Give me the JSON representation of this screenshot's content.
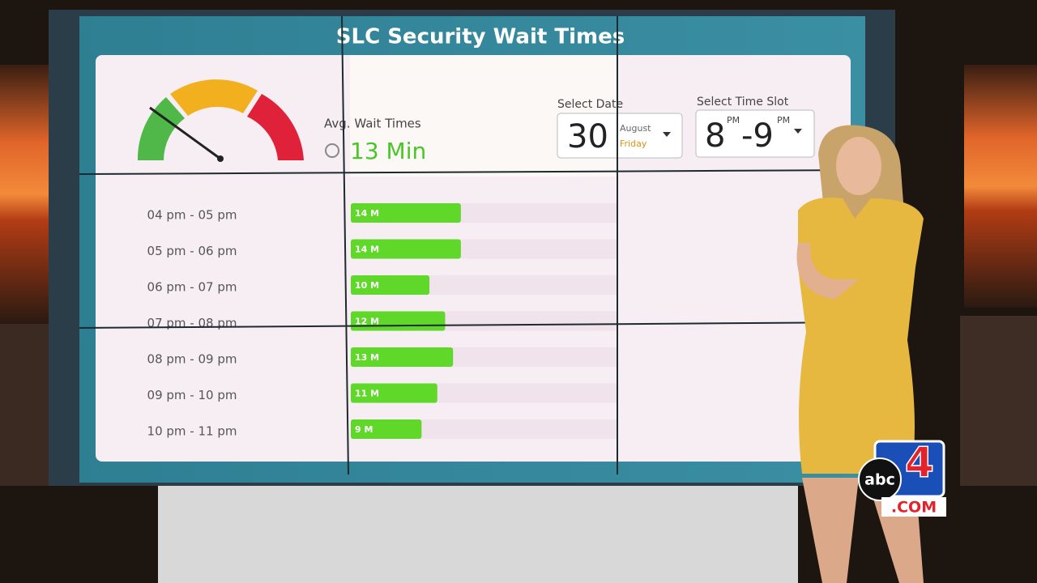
{
  "title": "SLC Security Wait Times",
  "gauge": {
    "label": "Avg. Wait Times",
    "value_label": "13 Min"
  },
  "date_picker": {
    "label": "Select Date",
    "day": "30",
    "month": "August",
    "weekday": "Friday"
  },
  "time_picker": {
    "label": "Select Time Slot",
    "start": "8",
    "start_suffix": "PM",
    "end": "-9",
    "end_suffix": "PM"
  },
  "chart_data": {
    "type": "bar",
    "orientation": "horizontal",
    "categories": [
      "04 pm - 05 pm",
      "05 pm - 06 pm",
      "06 pm - 07 pm",
      "07 pm - 08 pm",
      "08 pm - 09 pm",
      "09 pm - 10 pm",
      "10 pm - 11 pm"
    ],
    "values": [
      14,
      14,
      10,
      12,
      13,
      11,
      9
    ],
    "value_labels": [
      "14 M",
      "14 M",
      "10 M",
      "12 M",
      "13 M",
      "11 M",
      "9 M"
    ],
    "color": "#5fd82a",
    "xlim": [
      0,
      34
    ]
  },
  "logo": {
    "brand": "abc",
    "number": "4",
    "domain": ".COM"
  }
}
